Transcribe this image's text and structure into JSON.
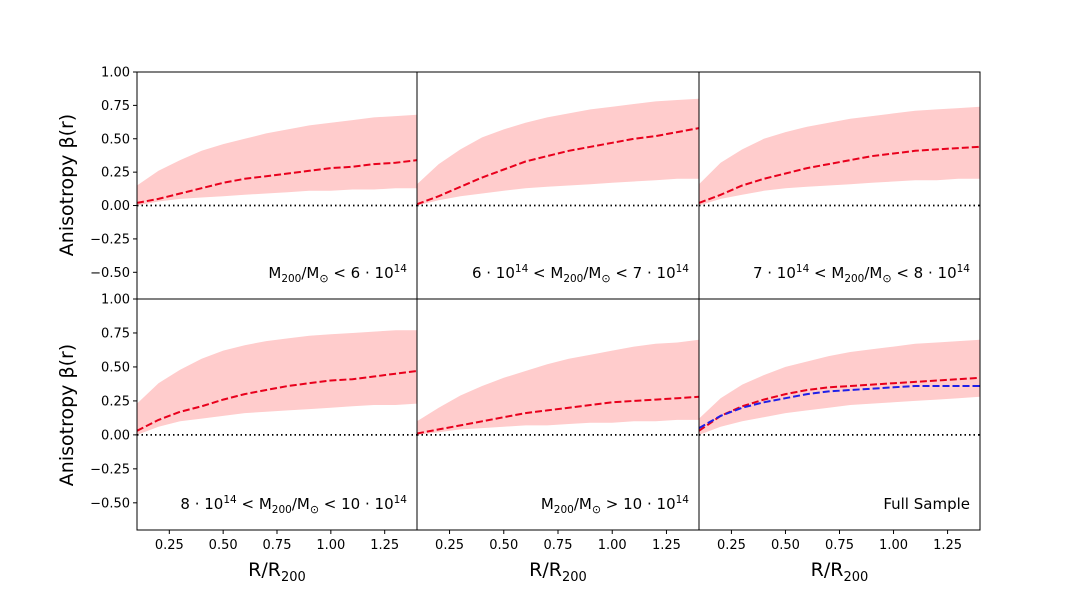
{
  "chart_data": {
    "type": "line",
    "layout": "2x3 grid, shared x-axis per column, shared y-axis per row",
    "ylabel": "Anisotropy β(r)",
    "xlabel": "R/R200",
    "xlim": [
      0.1,
      1.4
    ],
    "ylim": [
      -0.7,
      1.0
    ],
    "xticks": [
      0.25,
      0.5,
      0.75,
      1.0,
      1.25
    ],
    "xtick_labels": [
      "0.25",
      "0.50",
      "0.75",
      "1.00",
      "1.25"
    ],
    "yticks": [
      -0.5,
      -0.25,
      0.0,
      0.25,
      0.5,
      0.75,
      1.0
    ],
    "ytick_labels": [
      "−0.50",
      "−0.25",
      "0.00",
      "0.25",
      "0.50",
      "0.75",
      "1.00"
    ],
    "reference_line": {
      "y": 0.0,
      "style": "dotted",
      "color": "#000000"
    },
    "colors": {
      "median": "#e8001c",
      "band": "#ffcccc",
      "full_sample_model": "#1f1fe8"
    },
    "x": [
      0.1,
      0.2,
      0.3,
      0.4,
      0.5,
      0.6,
      0.7,
      0.8,
      0.9,
      1.0,
      1.1,
      1.2,
      1.3,
      1.4
    ],
    "panels": [
      {
        "label": {
          "pre": "M",
          "sub": "200",
          "mid": "/M",
          "sun": "⊙",
          "rel": " < 6 · 10",
          "sup": "14",
          "post": ""
        },
        "median": [
          0.02,
          0.05,
          0.09,
          0.13,
          0.17,
          0.2,
          0.22,
          0.24,
          0.26,
          0.28,
          0.29,
          0.31,
          0.32,
          0.34
        ],
        "upper": [
          0.15,
          0.26,
          0.34,
          0.41,
          0.46,
          0.5,
          0.54,
          0.57,
          0.6,
          0.62,
          0.64,
          0.66,
          0.67,
          0.68
        ],
        "lower": [
          0.0,
          0.03,
          0.05,
          0.06,
          0.07,
          0.08,
          0.09,
          0.1,
          0.11,
          0.11,
          0.12,
          0.12,
          0.13,
          0.13
        ]
      },
      {
        "label": {
          "pre": "6 · 10",
          "presup": "14",
          "pre2": " < M",
          "sub": "200",
          "mid": "/M",
          "sun": "⊙",
          "rel": " < 7 · 10",
          "sup": "14",
          "post": ""
        },
        "median": [
          0.01,
          0.07,
          0.14,
          0.21,
          0.27,
          0.33,
          0.37,
          0.41,
          0.44,
          0.47,
          0.5,
          0.52,
          0.55,
          0.58
        ],
        "upper": [
          0.16,
          0.31,
          0.42,
          0.51,
          0.57,
          0.62,
          0.66,
          0.69,
          0.72,
          0.74,
          0.76,
          0.78,
          0.79,
          0.8
        ],
        "lower": [
          0.0,
          0.04,
          0.07,
          0.09,
          0.11,
          0.13,
          0.14,
          0.15,
          0.16,
          0.17,
          0.18,
          0.19,
          0.2,
          0.2
        ]
      },
      {
        "label": {
          "pre": "7 · 10",
          "presup": "14",
          "pre2": " < M",
          "sub": "200",
          "mid": "/M",
          "sun": "⊙",
          "rel": " < 8 · 10",
          "sup": "14",
          "post": ""
        },
        "median": [
          0.02,
          0.08,
          0.15,
          0.2,
          0.24,
          0.28,
          0.31,
          0.34,
          0.37,
          0.39,
          0.41,
          0.42,
          0.43,
          0.44
        ],
        "upper": [
          0.16,
          0.32,
          0.42,
          0.5,
          0.55,
          0.59,
          0.62,
          0.65,
          0.67,
          0.69,
          0.71,
          0.72,
          0.73,
          0.74
        ],
        "lower": [
          0.0,
          0.05,
          0.08,
          0.11,
          0.13,
          0.14,
          0.15,
          0.16,
          0.17,
          0.18,
          0.19,
          0.19,
          0.2,
          0.2
        ]
      },
      {
        "label": {
          "pre": "8 · 10",
          "presup": "14",
          "pre2": " < M",
          "sub": "200",
          "mid": "/M",
          "sun": "⊙",
          "rel": " < 10 · 10",
          "sup": "14",
          "post": ""
        },
        "median": [
          0.03,
          0.11,
          0.17,
          0.21,
          0.26,
          0.3,
          0.33,
          0.36,
          0.38,
          0.4,
          0.41,
          0.43,
          0.45,
          0.47
        ],
        "upper": [
          0.23,
          0.38,
          0.48,
          0.56,
          0.62,
          0.66,
          0.69,
          0.71,
          0.73,
          0.74,
          0.75,
          0.76,
          0.77,
          0.77
        ],
        "lower": [
          0.0,
          0.06,
          0.1,
          0.12,
          0.14,
          0.16,
          0.17,
          0.18,
          0.19,
          0.2,
          0.21,
          0.22,
          0.22,
          0.23
        ]
      },
      {
        "label": {
          "pre": "M",
          "sub": "200",
          "mid": "/M",
          "sun": "⊙",
          "rel": " > 10 · 10",
          "sup": "14",
          "post": ""
        },
        "median": [
          0.01,
          0.04,
          0.07,
          0.1,
          0.13,
          0.16,
          0.18,
          0.2,
          0.22,
          0.24,
          0.25,
          0.26,
          0.27,
          0.28
        ],
        "upper": [
          0.1,
          0.2,
          0.29,
          0.36,
          0.42,
          0.47,
          0.52,
          0.56,
          0.59,
          0.62,
          0.65,
          0.67,
          0.68,
          0.7
        ],
        "lower": [
          0.0,
          0.02,
          0.04,
          0.05,
          0.06,
          0.07,
          0.07,
          0.08,
          0.09,
          0.09,
          0.1,
          0.1,
          0.11,
          0.11
        ]
      },
      {
        "label": {
          "pre": "Full Sample",
          "sub": "",
          "mid": "",
          "sun": "",
          "rel": "",
          "sup": "",
          "post": ""
        },
        "median": [
          0.03,
          0.14,
          0.21,
          0.26,
          0.3,
          0.33,
          0.35,
          0.36,
          0.37,
          0.38,
          0.39,
          0.4,
          0.41,
          0.42
        ],
        "upper": [
          0.12,
          0.27,
          0.37,
          0.44,
          0.5,
          0.54,
          0.58,
          0.61,
          0.63,
          0.65,
          0.67,
          0.68,
          0.69,
          0.7
        ],
        "lower": [
          0.0,
          0.06,
          0.1,
          0.13,
          0.16,
          0.18,
          0.2,
          0.22,
          0.23,
          0.24,
          0.25,
          0.26,
          0.27,
          0.28
        ],
        "model": [
          0.05,
          0.14,
          0.2,
          0.24,
          0.27,
          0.3,
          0.32,
          0.33,
          0.34,
          0.35,
          0.36,
          0.36,
          0.36,
          0.36
        ]
      }
    ]
  }
}
